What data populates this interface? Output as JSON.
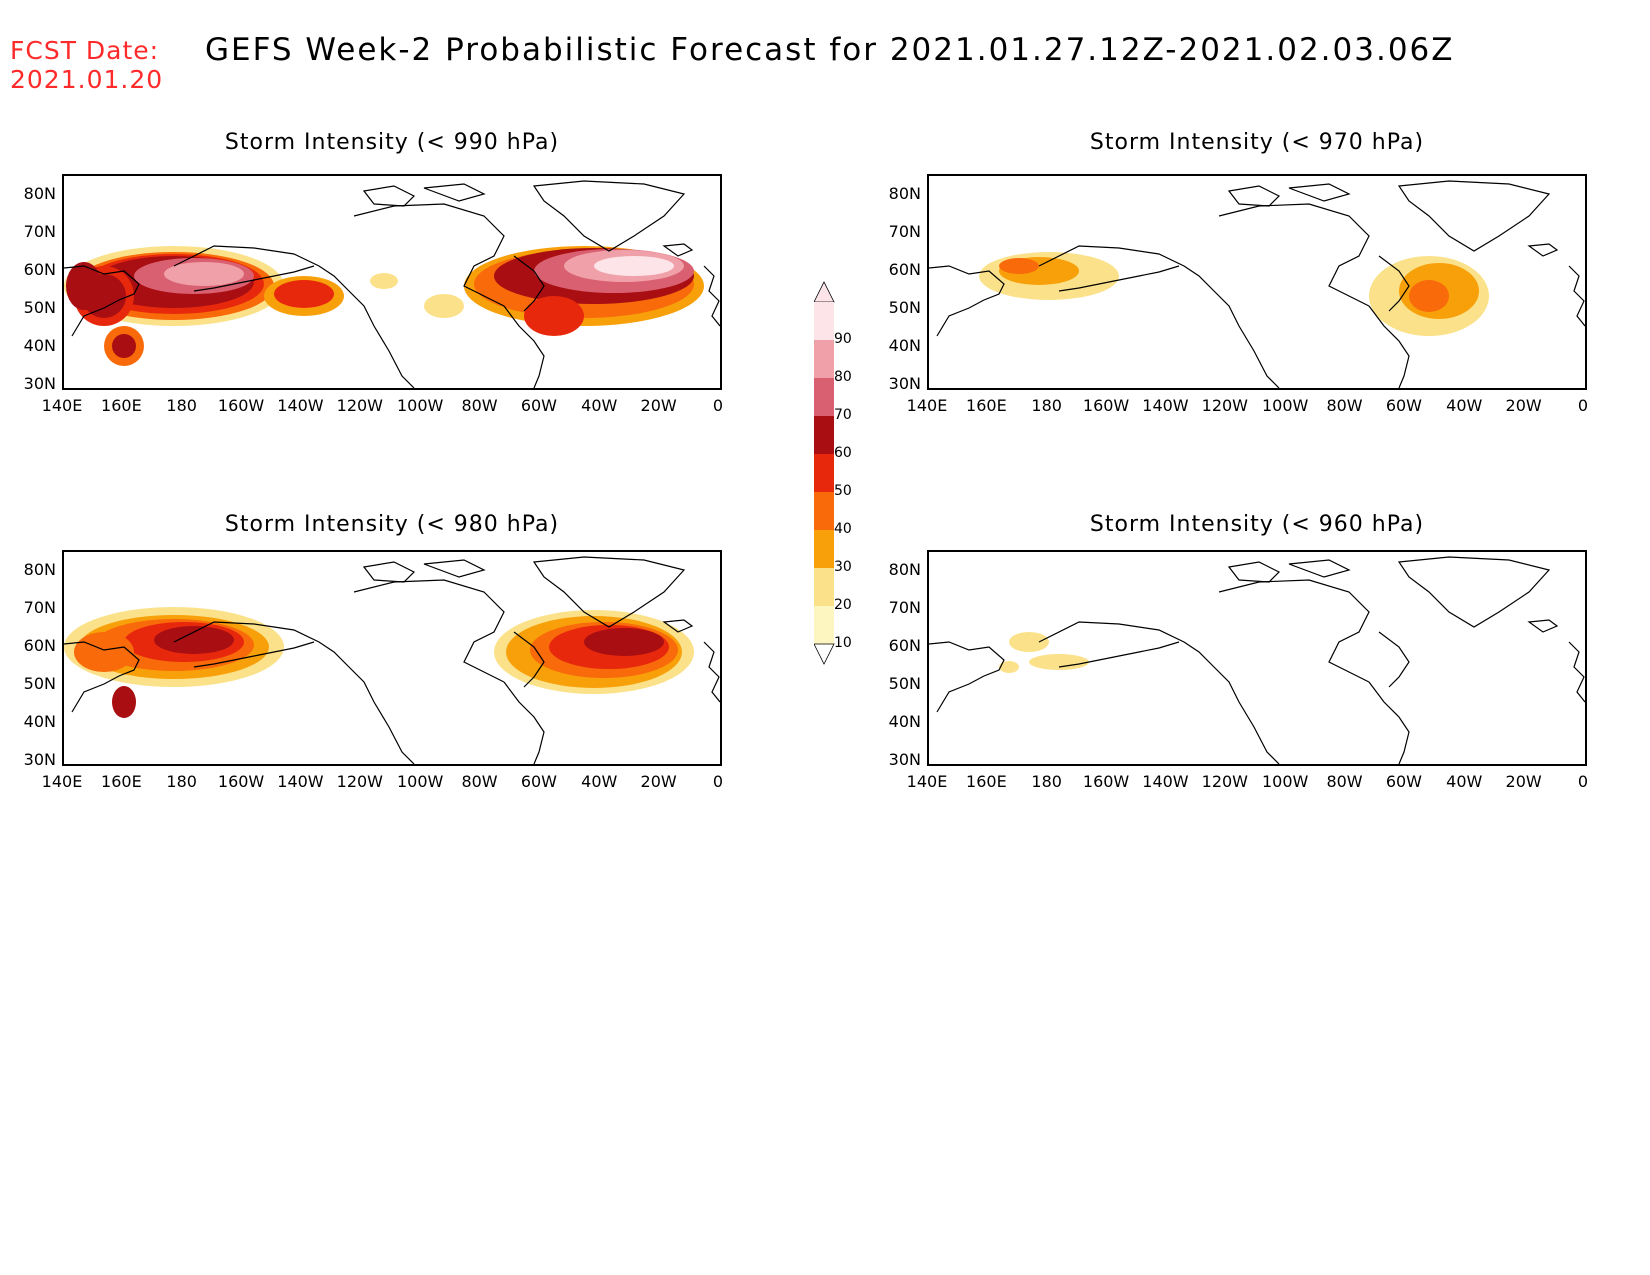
{
  "header": {
    "fcst_line1": "FCST Date:",
    "fcst_line2": "2021.01.20",
    "title": "GEFS Week-2 Probabilistic Forecast for 2021.01.27.12Z-2021.02.03.06Z"
  },
  "panels": [
    {
      "title": "Storm Intensity (< 990 hPa)"
    },
    {
      "title": "Storm Intensity (< 970 hPa)"
    },
    {
      "title": "Storm Intensity (< 980 hPa)"
    },
    {
      "title": "Storm Intensity (< 960 hPa)"
    }
  ],
  "axes": {
    "lat_labels": [
      "80N",
      "70N",
      "60N",
      "50N",
      "40N",
      "30N"
    ],
    "lon_labels": [
      "140E",
      "160E",
      "180",
      "160W",
      "140W",
      "120W",
      "100W",
      "80W",
      "60W",
      "40W",
      "20W",
      "0"
    ]
  },
  "colorbar": {
    "labels": [
      "90",
      "80",
      "70",
      "60",
      "50",
      "40",
      "30",
      "20",
      "10"
    ],
    "colors": [
      "#fde4e8",
      "#f0a0a8",
      "#d96070",
      "#a80e12",
      "#e8280c",
      "#f86a0a",
      "#f8a00a",
      "#fbe28a",
      "#fdf6c0"
    ]
  },
  "colors": {
    "fcst_date": "#ff2a2a",
    "land_outline": "#000000"
  }
}
